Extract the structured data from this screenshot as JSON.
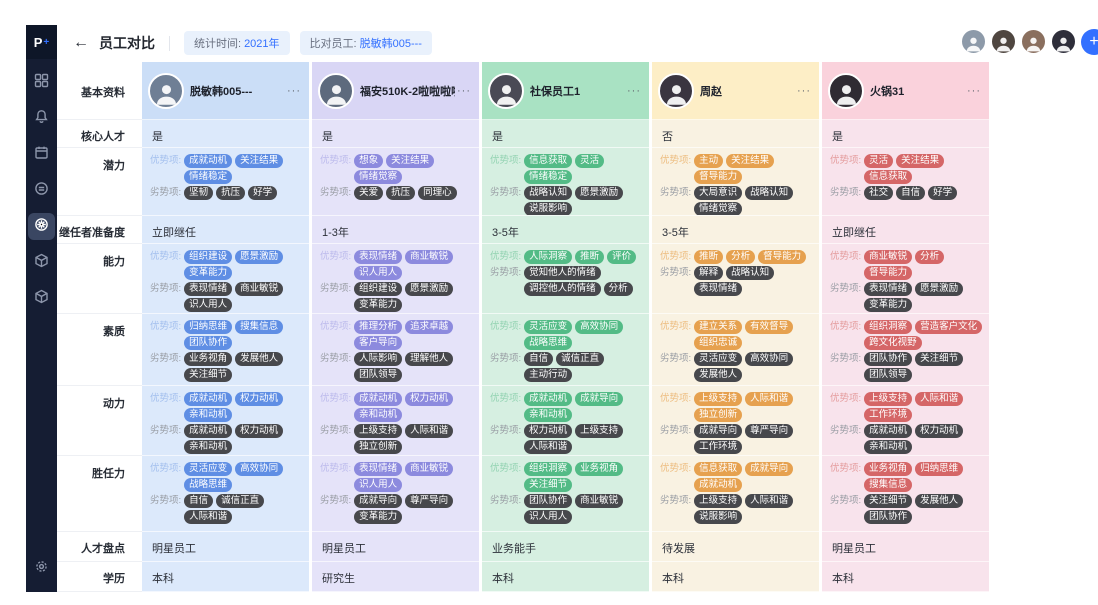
{
  "app": {
    "logo_text": "P",
    "logo_plus": "+",
    "accent_color": "#3370ff"
  },
  "topbar": {
    "back_icon": "←",
    "title": "员工对比",
    "filters": [
      {
        "label": "统计时间:",
        "value": "2021年"
      },
      {
        "label": "比对员工:",
        "value": "脱敏韩005---"
      }
    ],
    "avatars": [
      {
        "icon": "user-photo",
        "bg": "#8d9aa9"
      },
      {
        "icon": "user-photo",
        "bg": "#4f4640"
      },
      {
        "icon": "user-photo",
        "bg": "#8a6f5e"
      },
      {
        "icon": "user-photo",
        "bg": "#2e2e3a"
      }
    ],
    "add_button": "+"
  },
  "sidebar": {
    "items": [
      {
        "icon": "apps-grid-icon",
        "active": false
      },
      {
        "icon": "bell-icon",
        "active": false
      },
      {
        "icon": "calendar-icon",
        "active": false
      },
      {
        "icon": "coin-icon",
        "active": false
      },
      {
        "icon": "assessment-compass-icon",
        "active": true
      },
      {
        "icon": "cube-icon",
        "active": false
      },
      {
        "icon": "cube-icon",
        "active": false
      }
    ],
    "bottom_icon": "gear-icon"
  },
  "table": {
    "row_labels": [
      "基本资料",
      "核心人才",
      "潜力",
      "继任者准备度",
      "能力",
      "素质",
      "动力",
      "胜任力",
      "人才盘点",
      "学历"
    ],
    "strength_label": "优势项:",
    "weakness_label": "劣势项:",
    "more_label": "···",
    "weak_tag_bg": "#47484c",
    "weak_label_color": "#989ca3",
    "employees": [
      {
        "name": "脱敏韩005---",
        "avatar_bg": "#6f7f95",
        "theme": {
          "header_bg": "#cbdef7",
          "body_bg": "#dce9fb",
          "tag_bg": "#5f8ee4",
          "tag_label_color": "#a3bfee"
        },
        "values": {
          "core_talent": "是",
          "readiness": "立即继任",
          "review": "明星员工",
          "education": "本科"
        },
        "tags": {
          "potential": {
            "s": [
              "成就动机",
              "关注结果",
              "情绪稳定"
            ],
            "w": [
              "坚韧",
              "抗压",
              "好学"
            ]
          },
          "ability": {
            "s": [
              "组织建设",
              "愿景激励",
              "变革能力"
            ],
            "w": [
              "表现情绪",
              "商业敏锐",
              "识人用人"
            ]
          },
          "quality": {
            "s": [
              "归纳思维",
              "搜集信息",
              "团队协作"
            ],
            "w": [
              "业务视角",
              "发展他人",
              "关注细节"
            ]
          },
          "motivation": {
            "s": [
              "成就动机",
              "权力动机",
              "亲和动机"
            ],
            "w": [
              "成就动机",
              "权力动机",
              "亲和动机"
            ]
          },
          "competency": {
            "s": [
              "灵活应变",
              "高效协同",
              "战略思维"
            ],
            "w": [
              "自信",
              "诚信正直",
              "人际和谐"
            ]
          }
        }
      },
      {
        "name": "福安510K-2啦啦啦啦",
        "avatar_bg": "#5d6a7d",
        "theme": {
          "header_bg": "#d9d6f5",
          "body_bg": "#e5e3f9",
          "tag_bg": "#8c8ade",
          "tag_label_color": "#bcbaec"
        },
        "values": {
          "core_talent": "是",
          "readiness": "1-3年",
          "review": "明星员工",
          "education": "研究生"
        },
        "tags": {
          "potential": {
            "s": [
              "想象",
              "关注结果",
              "情绪觉察"
            ],
            "w": [
              "关爱",
              "抗压",
              "同理心"
            ]
          },
          "ability": {
            "s": [
              "表现情绪",
              "商业敏锐",
              "识人用人"
            ],
            "w": [
              "组织建设",
              "愿景激励",
              "变革能力"
            ]
          },
          "quality": {
            "s": [
              "推理分析",
              "追求卓越",
              "客户导向"
            ],
            "w": [
              "人际影响",
              "理解他人",
              "团队领导"
            ]
          },
          "motivation": {
            "s": [
              "成就动机",
              "权力动机",
              "亲和动机"
            ],
            "w": [
              "上级支持",
              "人际和谐",
              "独立创新"
            ]
          },
          "competency": {
            "s": [
              "表现情绪",
              "商业敏锐",
              "识人用人"
            ],
            "w": [
              "成就导向",
              "尊严导向",
              "变革能力"
            ]
          }
        }
      },
      {
        "name": "社保员工1",
        "avatar_bg": "#4a4a55",
        "theme": {
          "header_bg": "#a9e2c3",
          "body_bg": "#d6efe1",
          "tag_bg": "#53bb86",
          "tag_label_color": "#93d3b2"
        },
        "values": {
          "core_talent": "是",
          "readiness": "3-5年",
          "review": "业务能手",
          "education": "本科"
        },
        "tags": {
          "potential": {
            "s": [
              "信息获取",
              "灵活",
              "情绪稳定"
            ],
            "w": [
              "战略认知",
              "愿景激励",
              "说服影响"
            ]
          },
          "ability": {
            "s": [
              "人际洞察",
              "推断",
              "评价"
            ],
            "w": [
              "觉知他人的情绪",
              "调控他人的情绪",
              "分析"
            ]
          },
          "quality": {
            "s": [
              "灵活应变",
              "高效协同",
              "战略思维"
            ],
            "w": [
              "自信",
              "诚信正直",
              "主动行动"
            ]
          },
          "motivation": {
            "s": [
              "成就动机",
              "成就导向",
              "亲和动机"
            ],
            "w": [
              "权力动机",
              "上级支持",
              "人际和谐"
            ]
          },
          "competency": {
            "s": [
              "组织洞察",
              "业务视角",
              "关注细节"
            ],
            "w": [
              "团队协作",
              "商业敏锐",
              "识人用人"
            ]
          }
        }
      },
      {
        "name": "周赵",
        "avatar_bg": "#3a3540",
        "theme": {
          "header_bg": "#fdeec6",
          "body_bg": "#f9f2e2",
          "tag_bg": "#e6a14f",
          "tag_label_color": "#edbd80"
        },
        "values": {
          "core_talent": "否",
          "readiness": "3-5年",
          "review": "待发展",
          "education": "本科"
        },
        "tags": {
          "potential": {
            "s": [
              "主动",
              "关注结果",
              "督导能力"
            ],
            "w": [
              "大局意识",
              "战略认知",
              "情绪觉察"
            ]
          },
          "ability": {
            "s": [
              "推断",
              "分析",
              "督导能力"
            ],
            "w": [
              "解释",
              "战略认知",
              "表现情绪"
            ]
          },
          "quality": {
            "s": [
              "建立关系",
              "有效督导",
              "组织忠诚"
            ],
            "w": [
              "灵活应变",
              "高效协同",
              "发展他人"
            ]
          },
          "motivation": {
            "s": [
              "上级支持",
              "人际和谐",
              "独立创新"
            ],
            "w": [
              "成就导向",
              "尊严导向",
              "工作环境"
            ]
          },
          "competency": {
            "s": [
              "信息获取",
              "成就导向",
              "成就动机"
            ],
            "w": [
              "上级支持",
              "人际和谐",
              "说服影响"
            ]
          }
        }
      },
      {
        "name": "火锅31",
        "avatar_bg": "#2f2b33",
        "theme": {
          "header_bg": "#fad2dc",
          "body_bg": "#f8e3ec",
          "tag_bg": "#d56667",
          "tag_label_color": "#e49c9d"
        },
        "values": {
          "core_talent": "是",
          "readiness": "立即继任",
          "review": "明星员工",
          "education": "本科"
        },
        "tags": {
          "potential": {
            "s": [
              "灵活",
              "关注结果",
              "信息获取"
            ],
            "w": [
              "社交",
              "自信",
              "好学"
            ]
          },
          "ability": {
            "s": [
              "商业敏锐",
              "分析",
              "督导能力"
            ],
            "w": [
              "表现情绪",
              "愿景激励",
              "变革能力"
            ]
          },
          "quality": {
            "s": [
              "组织洞察",
              "营造客户文化",
              "跨文化视野"
            ],
            "w": [
              "团队协作",
              "关注细节",
              "团队领导"
            ]
          },
          "motivation": {
            "s": [
              "上级支持",
              "人际和谐",
              "工作环境"
            ],
            "w": [
              "成就动机",
              "权力动机",
              "亲和动机"
            ]
          },
          "competency": {
            "s": [
              "业务视角",
              "归纳思维",
              "搜集信息"
            ],
            "w": [
              "关注细节",
              "发展他人",
              "团队协作"
            ]
          }
        }
      }
    ]
  }
}
